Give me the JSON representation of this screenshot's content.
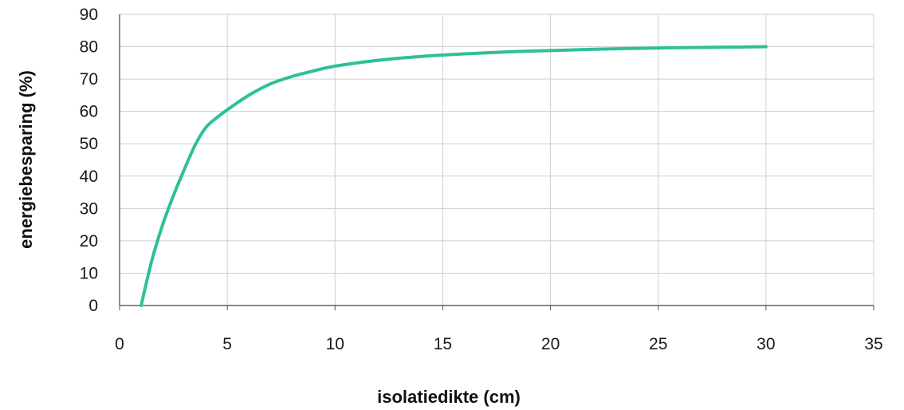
{
  "chart_data": {
    "type": "line",
    "title": "",
    "xlabel": "isolatiedikte (cm)",
    "ylabel": "energiebesparing (%)",
    "xlim": [
      0,
      35
    ],
    "ylim": [
      0,
      90
    ],
    "x_ticks": [
      "0",
      "5",
      "10",
      "15",
      "20",
      "25",
      "30",
      "35"
    ],
    "y_ticks": [
      "0",
      "10",
      "20",
      "30",
      "40",
      "50",
      "60",
      "70",
      "80",
      "90"
    ],
    "grid": true,
    "legend": "none",
    "series": [
      {
        "color": "#2fbf9a",
        "x": [
          1,
          1.5,
          2,
          2.5,
          3,
          3.5,
          4,
          4.5,
          5,
          6,
          7,
          8,
          9,
          10,
          12,
          14,
          16,
          18,
          20,
          22,
          24,
          26,
          28,
          30
        ],
        "y": [
          0,
          14,
          25,
          34,
          42,
          49.5,
          55,
          58,
          60.5,
          65,
          68.5,
          70.8,
          72.5,
          74,
          75.8,
          77,
          77.8,
          78.4,
          78.8,
          79.2,
          79.5,
          79.7,
          79.85,
          80
        ]
      }
    ]
  }
}
